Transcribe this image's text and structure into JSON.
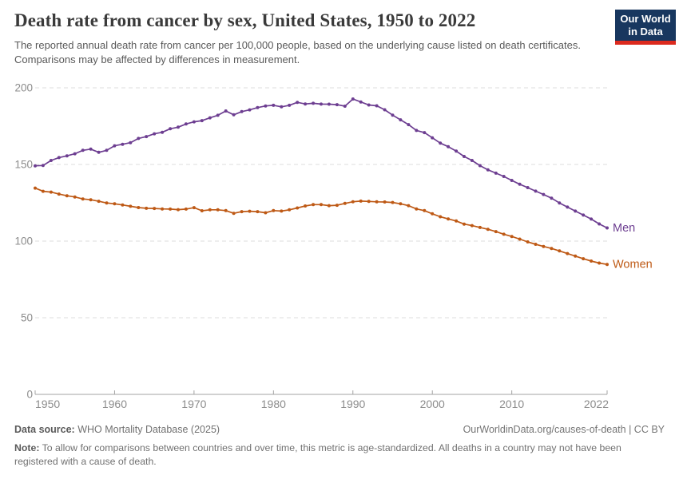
{
  "header": {
    "title": "Death rate from cancer by sex, United States, 1950 to 2022",
    "subtitle": "The reported annual death rate from cancer per 100,000 people, based on the underlying cause listed on death certificates. Comparisons may be affected by differences in measurement."
  },
  "logo": {
    "line1": "Our World",
    "line2": "in Data",
    "bg_color": "#18375f",
    "bar_color": "#dc2a1e"
  },
  "chart_data": {
    "type": "line",
    "title": "Death rate from cancer by sex, United States, 1950 to 2022",
    "xlabel": "",
    "ylabel": "",
    "xlim": [
      1950,
      2022
    ],
    "ylim": [
      0,
      200
    ],
    "xticks": [
      1950,
      1960,
      1970,
      1980,
      1990,
      2000,
      2010,
      2022
    ],
    "yticks": [
      0,
      50,
      100,
      150,
      200
    ],
    "grid": "horizontal-dashed",
    "legend": "end-of-line-labels",
    "years": [
      1950,
      1951,
      1952,
      1953,
      1954,
      1955,
      1956,
      1957,
      1958,
      1959,
      1960,
      1961,
      1962,
      1963,
      1964,
      1965,
      1966,
      1967,
      1968,
      1969,
      1970,
      1971,
      1972,
      1973,
      1974,
      1975,
      1976,
      1977,
      1978,
      1979,
      1980,
      1981,
      1982,
      1983,
      1984,
      1985,
      1986,
      1987,
      1988,
      1989,
      1990,
      1991,
      1992,
      1993,
      1994,
      1995,
      1996,
      1997,
      1998,
      1999,
      2000,
      2001,
      2002,
      2003,
      2004,
      2005,
      2006,
      2007,
      2008,
      2009,
      2010,
      2011,
      2012,
      2013,
      2014,
      2015,
      2016,
      2017,
      2018,
      2019,
      2020,
      2021,
      2022
    ],
    "series": [
      {
        "name": "Men",
        "color": "#6d3e91",
        "values": [
          149.1,
          149.3,
          152.6,
          154.5,
          155.6,
          157.0,
          159.2,
          160.0,
          157.9,
          159.2,
          162.2,
          163.2,
          164.2,
          167.0,
          168.2,
          170.0,
          171.0,
          173.3,
          174.3,
          176.4,
          177.8,
          178.6,
          180.4,
          182.1,
          184.9,
          182.4,
          184.5,
          185.6,
          187.1,
          188.2,
          188.6,
          187.6,
          188.6,
          190.5,
          189.5,
          189.9,
          189.4,
          189.3,
          189.0,
          188.0,
          192.7,
          190.8,
          188.8,
          188.3,
          185.7,
          182.2,
          179.1,
          176.0,
          172.2,
          170.8,
          167.4,
          163.9,
          161.6,
          158.7,
          155.2,
          152.6,
          149.2,
          146.5,
          144.3,
          142.2,
          139.6,
          137.1,
          134.9,
          132.6,
          130.4,
          128.0,
          124.9,
          122.2,
          119.6,
          117.0,
          114.4,
          111.2,
          108.6
        ]
      },
      {
        "name": "Women",
        "color": "#be5915",
        "values": [
          134.6,
          132.5,
          132.0,
          130.7,
          129.6,
          128.8,
          127.5,
          127.0,
          126.0,
          124.9,
          124.3,
          123.6,
          122.7,
          121.9,
          121.4,
          121.3,
          121.0,
          120.9,
          120.5,
          120.9,
          121.8,
          119.8,
          120.4,
          120.4,
          119.9,
          118.1,
          119.2,
          119.5,
          119.2,
          118.5,
          119.9,
          119.6,
          120.4,
          121.6,
          122.9,
          123.8,
          123.8,
          123.1,
          123.4,
          124.6,
          125.7,
          126.1,
          125.9,
          125.6,
          125.5,
          125.2,
          124.3,
          123.1,
          121.0,
          119.9,
          117.8,
          115.9,
          114.5,
          113.1,
          111.1,
          110.1,
          108.9,
          107.7,
          106.2,
          104.5,
          103.0,
          101.3,
          99.5,
          97.9,
          96.5,
          95.2,
          93.6,
          91.9,
          90.2,
          88.5,
          87.0,
          85.7,
          84.8
        ]
      }
    ]
  },
  "footer": {
    "datasource_label": "Data source:",
    "datasource": "WHO Mortality Database (2025)",
    "credit": "OurWorldinData.org/causes-of-death | CC BY",
    "note_label": "Note:",
    "note": "To allow for comparisons between countries and over time, this metric is age-standardized. All deaths in a country may not have been registered with a cause of death."
  }
}
